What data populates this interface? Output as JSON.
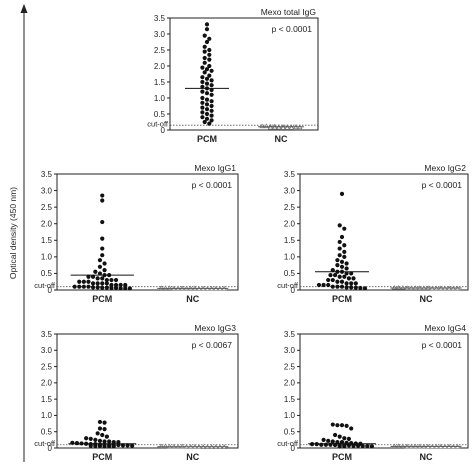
{
  "figure": {
    "y_axis_label": "Optical density (450 nm)"
  },
  "chart_data": [
    {
      "type": "scatter",
      "title": "Mexo total IgG",
      "p_value": "p < 0.0001",
      "categories": [
        "PCM",
        "NC"
      ],
      "ylim": [
        0,
        3.5
      ],
      "yticks": [
        "0",
        "0.5",
        "1.0",
        "1.5",
        "2.0",
        "2.5",
        "3.0",
        "3.5"
      ],
      "cutoff_label": "cut-off",
      "cutoff_value": 0.15,
      "series": [
        {
          "category": "PCM",
          "marker": "filled-circle",
          "mean": 1.3,
          "values": [
            3.3,
            3.15,
            2.95,
            2.85,
            2.75,
            2.6,
            2.5,
            2.45,
            2.35,
            2.25,
            2.2,
            2.1,
            2.0,
            1.95,
            1.9,
            1.85,
            1.8,
            1.7,
            1.65,
            1.6,
            1.55,
            1.5,
            1.45,
            1.4,
            1.35,
            1.3,
            1.25,
            1.2,
            1.15,
            1.1,
            1.0,
            0.95,
            0.9,
            0.85,
            0.8,
            0.75,
            0.7,
            0.65,
            0.6,
            0.55,
            0.5,
            0.45,
            0.4,
            0.35,
            0.3,
            0.25,
            0.2
          ]
        },
        {
          "category": "NC",
          "marker": "open-triangle",
          "mean": 0.1,
          "values": [
            0.12,
            0.12,
            0.11,
            0.11,
            0.1,
            0.1,
            0.1,
            0.09,
            0.09,
            0.09,
            0.08,
            0.08,
            0.08,
            0.07,
            0.07,
            0.07
          ]
        }
      ]
    },
    {
      "type": "scatter",
      "title": "Mexo IgG1",
      "p_value": "p < 0.0001",
      "categories": [
        "PCM",
        "NC"
      ],
      "ylim": [
        0,
        3.5
      ],
      "yticks": [
        "0",
        "0.5",
        "1.0",
        "1.5",
        "2.0",
        "2.5",
        "3.0",
        "3.5"
      ],
      "cutoff_label": "cut-off",
      "cutoff_value": 0.1,
      "series": [
        {
          "category": "PCM",
          "marker": "filled-circle",
          "mean": 0.45,
          "values": [
            2.85,
            2.7,
            2.05,
            1.55,
            1.25,
            1.05,
            0.9,
            0.8,
            0.7,
            0.6,
            0.55,
            0.5,
            0.45,
            0.45,
            0.4,
            0.4,
            0.35,
            0.35,
            0.3,
            0.3,
            0.3,
            0.25,
            0.25,
            0.25,
            0.2,
            0.2,
            0.2,
            0.2,
            0.15,
            0.15,
            0.15,
            0.15,
            0.1,
            0.1,
            0.1,
            0.1,
            0.08,
            0.08,
            0.07,
            0.07,
            0.06,
            0.06,
            0.05,
            0.05,
            0.05
          ]
        },
        {
          "category": "NC",
          "marker": "open-triangle",
          "mean": 0.05,
          "values": [
            0.06,
            0.06,
            0.06,
            0.05,
            0.05,
            0.05,
            0.05,
            0.05,
            0.05,
            0.04,
            0.04,
            0.04,
            0.04,
            0.04,
            0.04,
            0.04
          ]
        }
      ]
    },
    {
      "type": "scatter",
      "title": "Mexo IgG2",
      "p_value": "p < 0.0001",
      "categories": [
        "PCM",
        "NC"
      ],
      "ylim": [
        0,
        3.5
      ],
      "yticks": [
        "0",
        "0.5",
        "1.0",
        "1.5",
        "2.0",
        "2.5",
        "3.0",
        "3.5"
      ],
      "cutoff_label": "cut-off",
      "cutoff_value": 0.1,
      "series": [
        {
          "category": "PCM",
          "marker": "filled-circle",
          "mean": 0.55,
          "values": [
            2.9,
            1.95,
            1.85,
            1.6,
            1.45,
            1.35,
            1.25,
            1.15,
            1.05,
            1.0,
            0.9,
            0.85,
            0.8,
            0.75,
            0.7,
            0.65,
            0.6,
            0.55,
            0.55,
            0.5,
            0.5,
            0.45,
            0.45,
            0.4,
            0.4,
            0.35,
            0.35,
            0.3,
            0.3,
            0.25,
            0.25,
            0.2,
            0.2,
            0.2,
            0.15,
            0.15,
            0.15,
            0.1,
            0.1,
            0.1,
            0.08,
            0.08,
            0.07,
            0.06,
            0.05
          ]
        },
        {
          "category": "NC",
          "marker": "open-triangle",
          "mean": 0.06,
          "values": [
            0.07,
            0.07,
            0.07,
            0.06,
            0.06,
            0.06,
            0.06,
            0.06,
            0.06,
            0.05,
            0.05,
            0.05,
            0.05,
            0.05,
            0.05,
            0.05
          ]
        }
      ]
    },
    {
      "type": "scatter",
      "title": "Mexo IgG3",
      "p_value": "p < 0.0067",
      "categories": [
        "PCM",
        "NC"
      ],
      "ylim": [
        0,
        3.5
      ],
      "yticks": [
        "0",
        "0.5",
        "1.0",
        "1.5",
        "2.0",
        "2.5",
        "3.0",
        "3.5"
      ],
      "cutoff_label": "cut-off",
      "cutoff_value": 0.1,
      "series": [
        {
          "category": "PCM",
          "marker": "filled-circle",
          "mean": 0.13,
          "values": [
            0.8,
            0.78,
            0.6,
            0.58,
            0.45,
            0.4,
            0.35,
            0.3,
            0.28,
            0.25,
            0.22,
            0.2,
            0.2,
            0.18,
            0.18,
            0.16,
            0.15,
            0.14,
            0.13,
            0.12,
            0.12,
            0.1,
            0.1,
            0.1,
            0.09,
            0.09,
            0.08,
            0.08,
            0.07,
            0.07,
            0.06,
            0.06,
            0.05,
            0.05,
            0.05
          ]
        },
        {
          "category": "NC",
          "marker": "open-triangle",
          "mean": 0.04,
          "values": [
            0.06,
            0.06,
            0.05,
            0.05,
            0.05,
            0.05,
            0.04,
            0.04,
            0.04,
            0.04,
            0.03,
            0.03,
            0.03,
            0.03,
            0.03,
            0.03
          ]
        }
      ]
    },
    {
      "type": "scatter",
      "title": "Mexo IgG4",
      "p_value": "p < 0.0001",
      "categories": [
        "PCM",
        "NC"
      ],
      "ylim": [
        0,
        3.5
      ],
      "yticks": [
        "0",
        "0.5",
        "1.0",
        "1.5",
        "2.0",
        "2.5",
        "3.0",
        "3.5"
      ],
      "cutoff_label": "cut-off",
      "cutoff_value": 0.1,
      "series": [
        {
          "category": "PCM",
          "marker": "filled-circle",
          "mean": 0.13,
          "values": [
            0.72,
            0.7,
            0.7,
            0.68,
            0.6,
            0.4,
            0.35,
            0.3,
            0.28,
            0.25,
            0.22,
            0.2,
            0.18,
            0.18,
            0.16,
            0.15,
            0.14,
            0.13,
            0.12,
            0.12,
            0.1,
            0.1,
            0.1,
            0.09,
            0.09,
            0.08,
            0.08,
            0.07,
            0.07,
            0.06,
            0.06,
            0.05,
            0.05,
            0.05
          ]
        },
        {
          "category": "NC",
          "marker": "open-triangle",
          "mean": 0.05,
          "values": [
            0.06,
            0.06,
            0.06,
            0.05,
            0.05,
            0.05,
            0.05,
            0.05,
            0.04,
            0.04,
            0.04,
            0.04,
            0.04,
            0.04,
            0.04,
            0.04
          ]
        }
      ]
    }
  ]
}
